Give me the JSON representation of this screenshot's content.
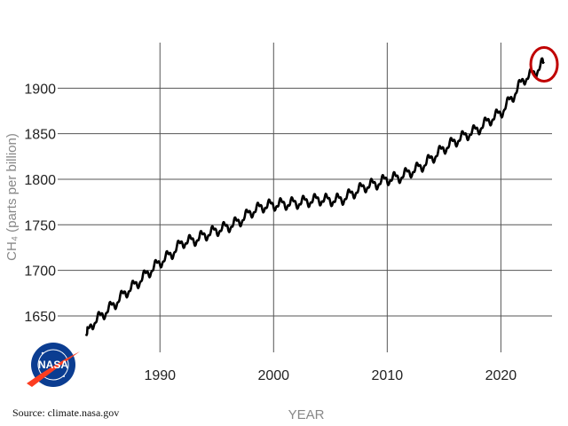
{
  "source_text": "Source: climate.nasa.gov",
  "logo": {
    "name": "nasa-logo",
    "text": "NASA",
    "colors": {
      "blue": "#0b3d91",
      "red": "#fc3d21"
    }
  },
  "chart_data": {
    "type": "line",
    "xlabel": "YEAR",
    "ylabel": "CH₄ (parts per billion)",
    "x_ticks": [
      1990,
      2000,
      2010,
      2020
    ],
    "y_ticks": [
      1650,
      1700,
      1750,
      1800,
      1850,
      1900
    ],
    "xlim": [
      1981,
      2024.5
    ],
    "ylim": [
      1610,
      1950
    ],
    "grid": true,
    "line_color": "#000000",
    "highlight": {
      "type": "circle",
      "color": "#c00000",
      "at_x": 2023.8,
      "at_y": 1929
    },
    "series": [
      {
        "x": [
          1983.5,
          1984.0,
          1985.0,
          1986.0,
          1987.0,
          1988.0,
          1989.0,
          1990.0,
          1991.0,
          1992.0,
          1993.0,
          1994.0,
          1995.0,
          1996.0,
          1997.0,
          1998.0,
          1999.0,
          2000.0,
          2001.0,
          2002.0,
          2003.0,
          2004.0,
          2005.0,
          2006.0,
          2007.0,
          2008.0,
          2009.0,
          2010.0,
          2011.0,
          2012.0,
          2013.0,
          2014.0,
          2015.0,
          2016.0,
          2017.0,
          2018.0,
          2019.0,
          2020.0,
          2021.0,
          2022.0,
          2023.0,
          2023.8
        ],
        "y": [
          1628,
          1641,
          1652,
          1663,
          1676,
          1686,
          1698,
          1709,
          1718,
          1731,
          1733,
          1739,
          1744,
          1748,
          1754,
          1764,
          1770,
          1772,
          1773,
          1774,
          1776,
          1778,
          1777,
          1778,
          1785,
          1792,
          1795,
          1800,
          1802,
          1808,
          1814,
          1824,
          1834,
          1842,
          1849,
          1855,
          1865,
          1873,
          1890,
          1910,
          1917,
          1929
        ]
      }
    ]
  }
}
